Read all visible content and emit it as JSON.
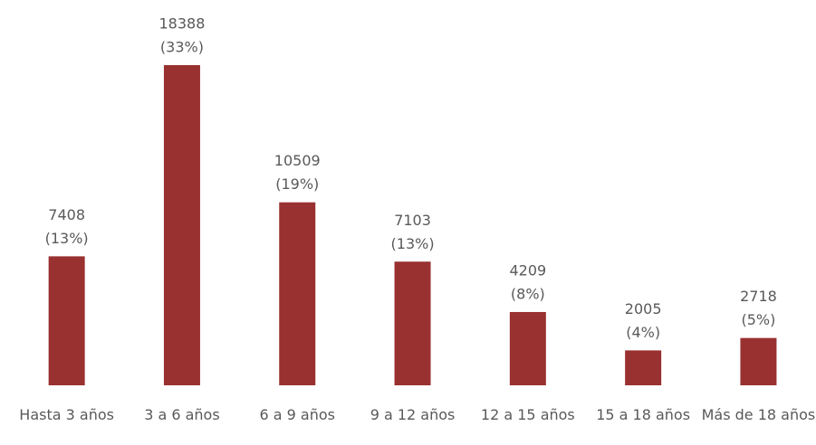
{
  "chart_data": {
    "type": "bar",
    "categories": [
      "Hasta 3 años",
      "3 a 6 años",
      "6 a 9 años",
      "9 a 12 años",
      "12 a 15 años",
      "15 a 18 años",
      "Más de 18 años"
    ],
    "values": [
      7408,
      18388,
      10509,
      7103,
      4209,
      2005,
      2718
    ],
    "share_labels": [
      "(13%)",
      "(33%)",
      "(19%)",
      "(13%)",
      "(8%)",
      "(4%)",
      "(5%)"
    ],
    "color": "#993131"
  }
}
